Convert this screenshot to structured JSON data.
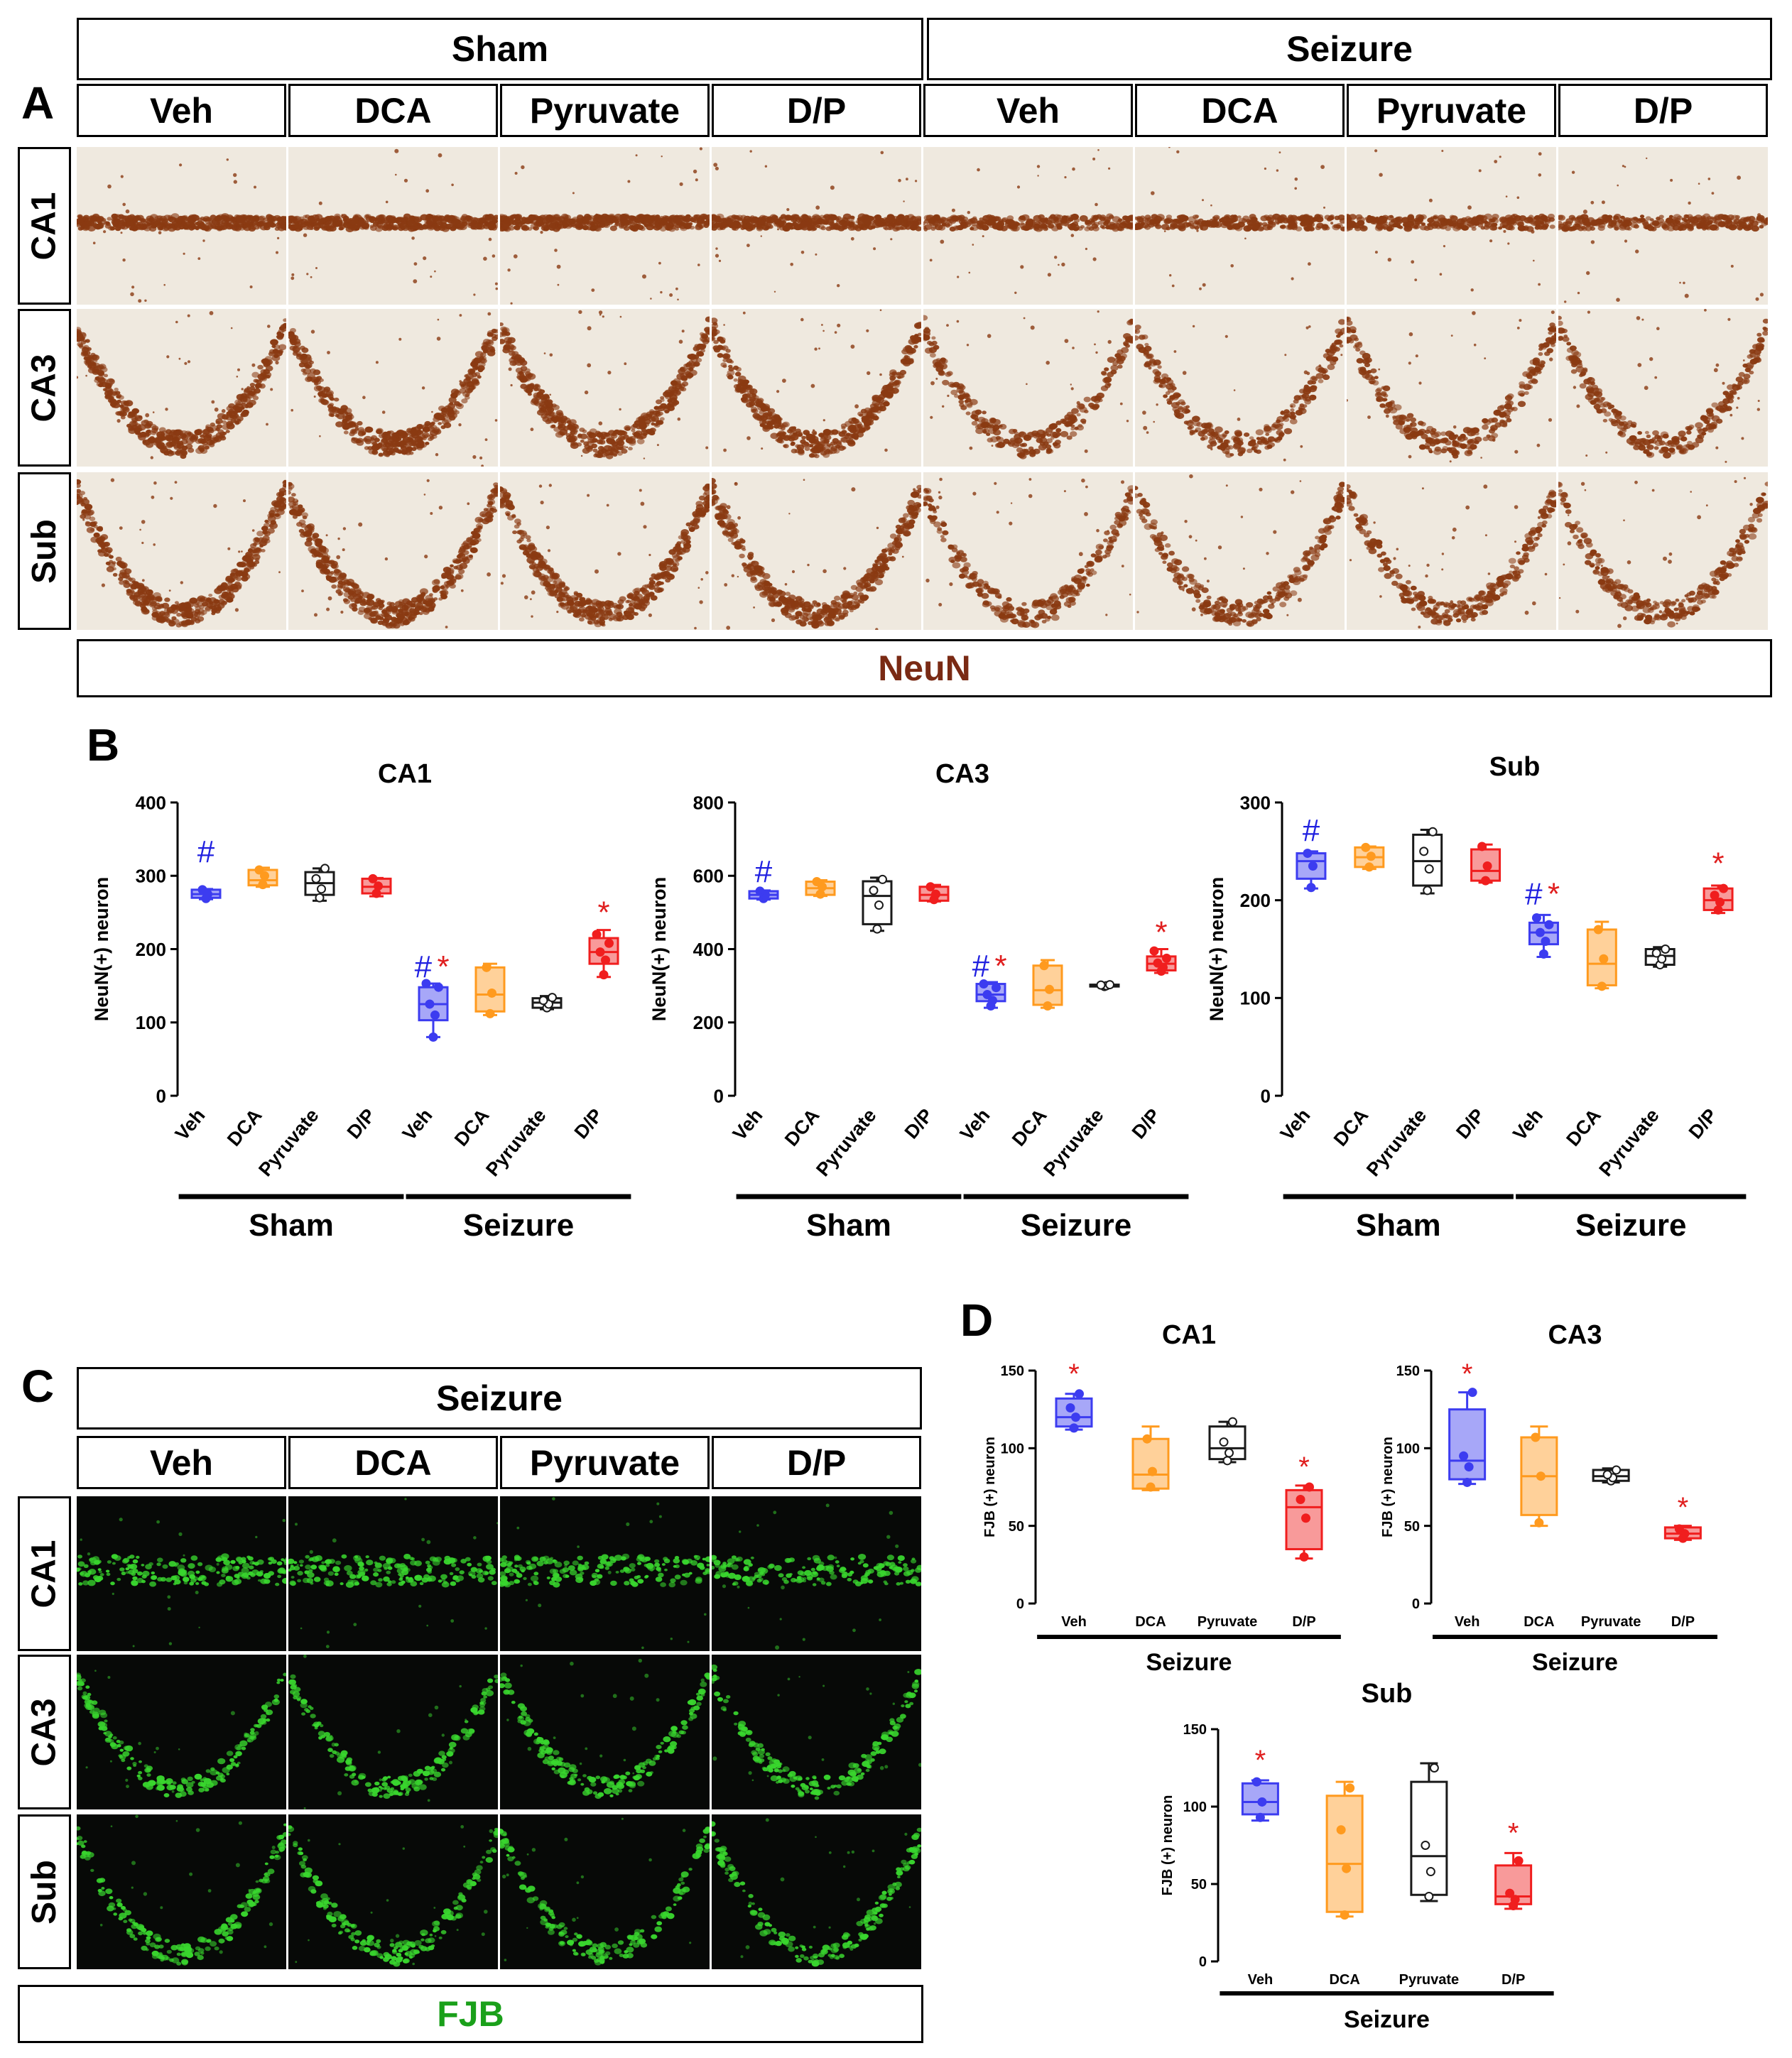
{
  "panel_letters": {
    "a": "A",
    "b": "B",
    "c": "C",
    "d": "D"
  },
  "panel_a": {
    "groups": [
      "Sham",
      "Seizure"
    ],
    "columns": [
      "Veh",
      "DCA",
      "Pyruvate",
      "D/P",
      "Veh",
      "DCA",
      "Pyruvate",
      "D/P"
    ],
    "rows": [
      "CA1",
      "CA3",
      "Sub"
    ],
    "stain": "NeuN",
    "stain_color": "#7a2a14",
    "tissue_color": "#8a3a12"
  },
  "panel_c": {
    "group": "Seizure",
    "columns": [
      "Veh",
      "DCA",
      "Pyruvate",
      "D/P"
    ],
    "rows": [
      "CA1",
      "CA3",
      "Sub"
    ],
    "stain": "FJB",
    "stain_color": "#1aa01a",
    "signal_color": "#39d62e"
  },
  "chart_data": [
    {
      "id": "b-ca1",
      "type": "box",
      "title": "CA1",
      "ylabel": "NeuN(+) neuron",
      "ylim": [
        0,
        400
      ],
      "yticks": [
        0,
        100,
        200,
        300,
        400
      ],
      "categories": [
        "Veh",
        "DCA",
        "Pyruvate",
        "D/P",
        "Veh",
        "DCA",
        "Pyruvate",
        "D/P"
      ],
      "groups": [
        {
          "name": "Sham",
          "from": 0,
          "to": 3
        },
        {
          "name": "Seizure",
          "from": 4,
          "to": 7
        }
      ],
      "colors": [
        "#3c3cf0",
        "#ff9a1e",
        "#1a1a1a",
        "#f01e1e",
        "#3c3cf0",
        "#ff9a1e",
        "#1a1a1a",
        "#f01e1e"
      ],
      "boxes": [
        {
          "min": 268,
          "q1": 270,
          "median": 275,
          "q3": 281,
          "max": 282,
          "points": [
            269,
            275,
            281
          ]
        },
        {
          "min": 285,
          "q1": 287,
          "median": 294,
          "q3": 308,
          "max": 311,
          "points": [
            288,
            300,
            308
          ]
        },
        {
          "min": 266,
          "q1": 274,
          "median": 290,
          "q3": 305,
          "max": 310,
          "points": [
            270,
            282,
            296,
            310
          ]
        },
        {
          "min": 272,
          "q1": 276,
          "median": 285,
          "q3": 296,
          "max": 297,
          "points": [
            276,
            286,
            296
          ]
        },
        {
          "min": 80,
          "q1": 103,
          "median": 125,
          "q3": 148,
          "max": 153,
          "points": [
            80,
            110,
            125,
            148,
            153
          ]
        },
        {
          "min": 110,
          "q1": 115,
          "median": 138,
          "q3": 175,
          "max": 180,
          "points": [
            112,
            140,
            175
          ]
        },
        {
          "min": 118,
          "q1": 120,
          "median": 127,
          "q3": 133,
          "max": 136,
          "points": [
            120,
            125,
            130,
            134
          ]
        },
        {
          "min": 162,
          "q1": 180,
          "median": 196,
          "q3": 215,
          "max": 226,
          "points": [
            165,
            185,
            196,
            208,
            220
          ]
        }
      ],
      "markers": [
        {
          "index": 0,
          "text": "#",
          "color": "#2020e0",
          "value": 315
        },
        {
          "index": 4,
          "text": "#",
          "color": "#2020e0",
          "value": 158
        },
        {
          "index": 4,
          "text": "*",
          "color": "#e01e1e",
          "value": 158
        },
        {
          "index": 7,
          "text": "*",
          "color": "#e01e1e",
          "value": 232
        }
      ]
    },
    {
      "id": "b-ca3",
      "type": "box",
      "title": "CA3",
      "ylabel": "NeuN(+) neuron",
      "ylim": [
        0,
        800
      ],
      "yticks": [
        0,
        200,
        400,
        600,
        800
      ],
      "categories": [
        "Veh",
        "DCA",
        "Pyruvate",
        "D/P",
        "Veh",
        "DCA",
        "Pyruvate",
        "D/P"
      ],
      "groups": [
        {
          "name": "Sham",
          "from": 0,
          "to": 3
        },
        {
          "name": "Seizure",
          "from": 4,
          "to": 7
        }
      ],
      "colors": [
        "#3c3cf0",
        "#ff9a1e",
        "#1a1a1a",
        "#f01e1e",
        "#3c3cf0",
        "#ff9a1e",
        "#1a1a1a",
        "#f01e1e"
      ],
      "boxes": [
        {
          "min": 535,
          "q1": 538,
          "median": 548,
          "q3": 558,
          "max": 560,
          "points": [
            538,
            548,
            558
          ]
        },
        {
          "min": 545,
          "q1": 548,
          "median": 566,
          "q3": 584,
          "max": 588,
          "points": [
            550,
            570,
            584
          ]
        },
        {
          "min": 450,
          "q1": 468,
          "median": 545,
          "q3": 585,
          "max": 595,
          "points": [
            455,
            520,
            560,
            590
          ]
        },
        {
          "min": 530,
          "q1": 532,
          "median": 548,
          "q3": 570,
          "max": 575,
          "points": [
            535,
            550,
            570
          ]
        },
        {
          "min": 240,
          "q1": 258,
          "median": 276,
          "q3": 305,
          "max": 310,
          "points": [
            245,
            260,
            276,
            295,
            305
          ]
        },
        {
          "min": 240,
          "q1": 248,
          "median": 288,
          "q3": 355,
          "max": 370,
          "points": [
            245,
            290,
            355
          ]
        },
        {
          "min": 297,
          "q1": 298,
          "median": 300,
          "q3": 303,
          "max": 304,
          "points": [
            298,
            300,
            302,
            303
          ]
        },
        {
          "min": 335,
          "q1": 342,
          "median": 360,
          "q3": 380,
          "max": 400,
          "points": [
            340,
            350,
            362,
            375,
            395
          ]
        }
      ],
      "markers": [
        {
          "index": 0,
          "text": "#",
          "color": "#2020e0",
          "value": 575
        },
        {
          "index": 4,
          "text": "#",
          "color": "#2020e0",
          "value": 318
        },
        {
          "index": 4,
          "text": "*",
          "color": "#e01e1e",
          "value": 318
        },
        {
          "index": 7,
          "text": "*",
          "color": "#e01e1e",
          "value": 410
        }
      ]
    },
    {
      "id": "b-sub",
      "type": "box",
      "title": "Sub",
      "ylabel": "NeuN(+) neuron",
      "ylim": [
        0,
        300
      ],
      "yticks": [
        0,
        100,
        200,
        300
      ],
      "categories": [
        "Veh",
        "DCA",
        "Pyruvate",
        "D/P",
        "Veh",
        "DCA",
        "Pyruvate",
        "D/P"
      ],
      "groups": [
        {
          "name": "Sham",
          "from": 0,
          "to": 3
        },
        {
          "name": "Seizure",
          "from": 4,
          "to": 7
        }
      ],
      "colors": [
        "#3c3cf0",
        "#ff9a1e",
        "#1a1a1a",
        "#f01e1e",
        "#3c3cf0",
        "#ff9a1e",
        "#1a1a1a",
        "#f01e1e"
      ],
      "boxes": [
        {
          "min": 212,
          "q1": 222,
          "median": 240,
          "q3": 248,
          "max": 250,
          "points": [
            213,
            235,
            248
          ]
        },
        {
          "min": 232,
          "q1": 234,
          "median": 244,
          "q3": 254,
          "max": 255,
          "points": [
            234,
            245,
            254
          ]
        },
        {
          "min": 207,
          "q1": 215,
          "median": 240,
          "q3": 267,
          "max": 272,
          "points": [
            210,
            232,
            250,
            270
          ]
        },
        {
          "min": 218,
          "q1": 220,
          "median": 230,
          "q3": 252,
          "max": 257,
          "points": [
            220,
            235,
            255
          ]
        },
        {
          "min": 142,
          "q1": 155,
          "median": 167,
          "q3": 177,
          "max": 185,
          "points": [
            145,
            158,
            167,
            175,
            182
          ]
        },
        {
          "min": 110,
          "q1": 113,
          "median": 135,
          "q3": 170,
          "max": 178,
          "points": [
            112,
            140,
            170
          ]
        },
        {
          "min": 132,
          "q1": 134,
          "median": 143,
          "q3": 150,
          "max": 152,
          "points": [
            134,
            140,
            146,
            150
          ]
        },
        {
          "min": 187,
          "q1": 190,
          "median": 200,
          "q3": 212,
          "max": 215,
          "points": [
            190,
            198,
            205,
            212
          ]
        }
      ],
      "markers": [
        {
          "index": 0,
          "text": "#",
          "color": "#2020e0",
          "value": 258
        },
        {
          "index": 4,
          "text": "#",
          "color": "#2020e0",
          "value": 193
        },
        {
          "index": 4,
          "text": "*",
          "color": "#e01e1e",
          "value": 193
        },
        {
          "index": 7,
          "text": "*",
          "color": "#e01e1e",
          "value": 224
        }
      ]
    },
    {
      "id": "d-ca1",
      "type": "box",
      "title": "CA1",
      "ylabel": "FJB (+) neuron",
      "ylim": [
        0,
        150
      ],
      "yticks": [
        0,
        50,
        100,
        150
      ],
      "categories": [
        "Veh",
        "DCA",
        "Pyruvate",
        "D/P"
      ],
      "groups": [
        {
          "name": "Seizure",
          "from": 0,
          "to": 3
        }
      ],
      "colors": [
        "#3c3cf0",
        "#ff9a1e",
        "#1a1a1a",
        "#f01e1e"
      ],
      "boxes": [
        {
          "min": 112,
          "q1": 114,
          "median": 120,
          "q3": 132,
          "max": 135,
          "points": [
            113,
            120,
            126,
            135
          ]
        },
        {
          "min": 73,
          "q1": 74,
          "median": 83,
          "q3": 106,
          "max": 114,
          "points": [
            75,
            85,
            106
          ]
        },
        {
          "min": 91,
          "q1": 93,
          "median": 100,
          "q3": 114,
          "max": 117,
          "points": [
            92,
            97,
            104,
            117
          ]
        },
        {
          "min": 29,
          "q1": 35,
          "median": 62,
          "q3": 73,
          "max": 76,
          "points": [
            30,
            55,
            67,
            75
          ]
        }
      ],
      "markers": [
        {
          "index": 0,
          "text": "*",
          "color": "#e01e1e",
          "value": 140
        },
        {
          "index": 3,
          "text": "*",
          "color": "#e01e1e",
          "value": 80
        }
      ]
    },
    {
      "id": "d-ca3",
      "type": "box",
      "title": "CA3",
      "ylabel": "FJB (+) neuron",
      "ylim": [
        0,
        150
      ],
      "yticks": [
        0,
        50,
        100,
        150
      ],
      "categories": [
        "Veh",
        "DCA",
        "Pyruvate",
        "D/P"
      ],
      "groups": [
        {
          "name": "Seizure",
          "from": 0,
          "to": 3
        }
      ],
      "colors": [
        "#3c3cf0",
        "#ff9a1e",
        "#1a1a1a",
        "#f01e1e"
      ],
      "boxes": [
        {
          "min": 77,
          "q1": 80,
          "median": 92,
          "q3": 125,
          "max": 136,
          "points": [
            78,
            88,
            95,
            136
          ]
        },
        {
          "min": 50,
          "q1": 57,
          "median": 82,
          "q3": 107,
          "max": 114,
          "points": [
            52,
            82,
            107
          ]
        },
        {
          "min": 78,
          "q1": 79,
          "median": 82,
          "q3": 86,
          "max": 87,
          "points": [
            79,
            81,
            83,
            86
          ]
        },
        {
          "min": 41,
          "q1": 42,
          "median": 45,
          "q3": 49,
          "max": 50,
          "points": [
            42,
            45,
            48
          ]
        }
      ],
      "markers": [
        {
          "index": 0,
          "text": "*",
          "color": "#e01e1e",
          "value": 140
        },
        {
          "index": 3,
          "text": "*",
          "color": "#e01e1e",
          "value": 54
        }
      ]
    },
    {
      "id": "d-sub",
      "type": "box",
      "title": "Sub",
      "ylabel": "FJB (+) neuron",
      "ylim": [
        0,
        150
      ],
      "yticks": [
        0,
        50,
        100,
        150
      ],
      "categories": [
        "Veh",
        "DCA",
        "Pyruvate",
        "D/P"
      ],
      "groups": [
        {
          "name": "Seizure",
          "from": 0,
          "to": 3
        }
      ],
      "colors": [
        "#3c3cf0",
        "#ff9a1e",
        "#1a1a1a",
        "#f01e1e"
      ],
      "boxes": [
        {
          "min": 91,
          "q1": 95,
          "median": 103,
          "q3": 115,
          "max": 117,
          "points": [
            93,
            103,
            116
          ]
        },
        {
          "min": 29,
          "q1": 32,
          "median": 63,
          "q3": 107,
          "max": 116,
          "points": [
            30,
            60,
            85,
            112
          ]
        },
        {
          "min": 39,
          "q1": 43,
          "median": 68,
          "q3": 116,
          "max": 128,
          "points": [
            42,
            58,
            75,
            125
          ]
        },
        {
          "min": 34,
          "q1": 37,
          "median": 42,
          "q3": 62,
          "max": 70,
          "points": [
            36,
            40,
            44,
            65
          ]
        }
      ],
      "markers": [
        {
          "index": 0,
          "text": "*",
          "color": "#e01e1e",
          "value": 122
        },
        {
          "index": 3,
          "text": "*",
          "color": "#e01e1e",
          "value": 75
        }
      ]
    }
  ]
}
